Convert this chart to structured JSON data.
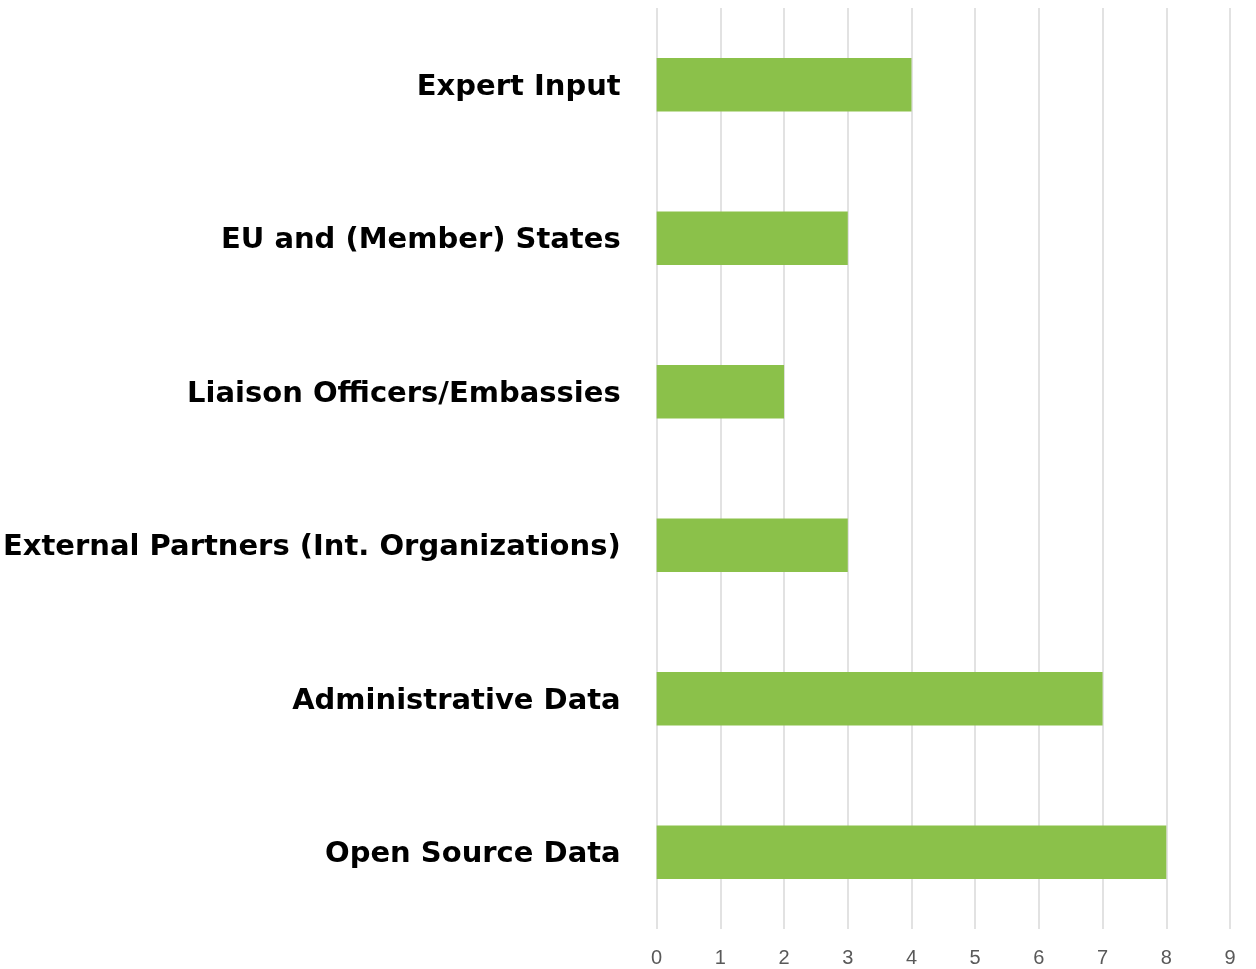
{
  "chart_data": {
    "type": "bar",
    "orientation": "horizontal",
    "categories": [
      "Expert Input",
      "EU and (Member) States",
      "Liaison Officers/Embassies",
      "External Partners (Int. Organizations)",
      "Administrative Data",
      "Open Source Data"
    ],
    "values": [
      4,
      3,
      2,
      3,
      7,
      8
    ],
    "color": "#8bc14a",
    "xlim": [
      0,
      9
    ],
    "xticks": [
      0,
      1,
      2,
      3,
      4,
      5,
      6,
      7,
      8,
      9
    ],
    "grid": "x"
  }
}
